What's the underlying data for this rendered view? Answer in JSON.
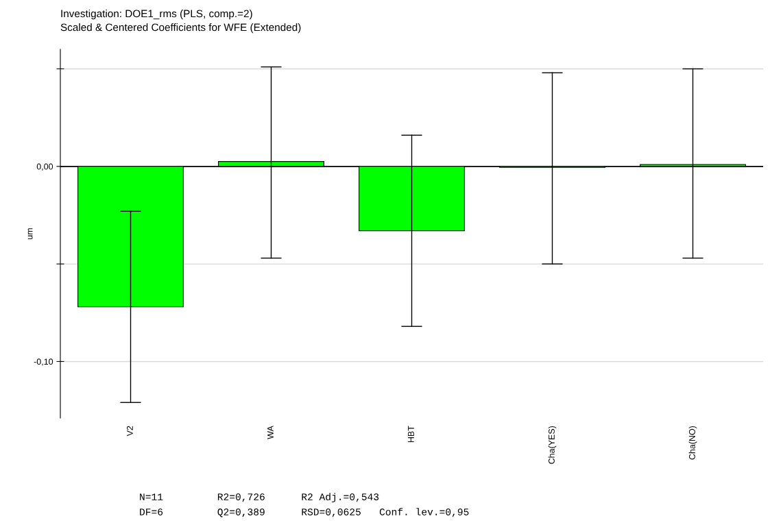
{
  "chart_data": {
    "type": "bar",
    "title": "Investigation: DOE1_rms (PLS, comp.=2)",
    "subtitle": "Scaled & Centered Coefficients for WFE (Extended)",
    "ylabel": "um",
    "categories": [
      "V2",
      "WA",
      "HBT",
      "Cha(YES)",
      "Cha(NO)"
    ],
    "values": [
      -0.072,
      0.0025,
      -0.033,
      -0.0005,
      0.001
    ],
    "errors": [
      [
        -0.121,
        -0.023
      ],
      [
        -0.047,
        0.051
      ],
      [
        -0.082,
        0.016
      ],
      [
        -0.05,
        0.048
      ],
      [
        -0.047,
        0.05
      ]
    ],
    "color": "#00ff00",
    "ylim": [
      -0.129,
      0.06
    ],
    "yticks": [
      {
        "value": 0.05,
        "label": null
      },
      {
        "value": 0.0,
        "label": "0,00"
      },
      {
        "value": -0.05,
        "label": null
      },
      {
        "value": -0.1,
        "label": "-0,10"
      }
    ],
    "grid": "y",
    "ref_lines": [
      {
        "axis": "y",
        "value": 0,
        "color": "#000000"
      }
    ],
    "annotations": [
      "N=11         R2=0,726      R2 Adj.=0,543",
      "DF=6         Q2=0,389      RSD=0,0625   Conf. lev.=0,95"
    ]
  }
}
